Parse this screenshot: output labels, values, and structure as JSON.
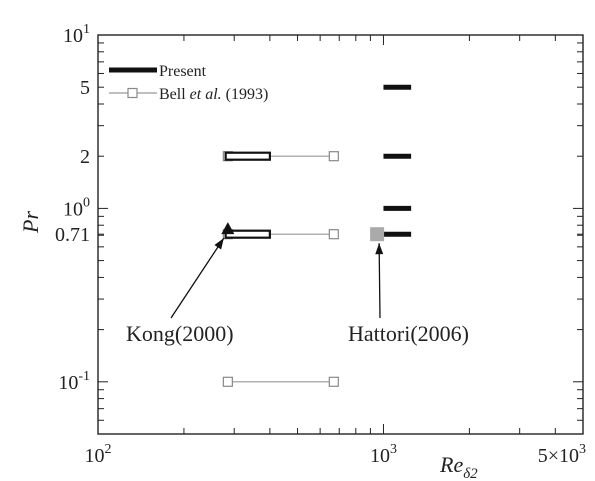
{
  "chart_data": {
    "type": "scatter",
    "xlabel": "Re",
    "xlabel_sub": "δ2",
    "ylabel": "Pr",
    "x_scale": "log",
    "y_scale": "log",
    "xlim": [
      100,
      5000
    ],
    "ylim": [
      0.05,
      10
    ],
    "grid": false,
    "legend_position": "top-left",
    "x_ticks": [
      {
        "value": 100,
        "base": "10",
        "exp": "2"
      },
      {
        "value": 1000,
        "base": "10",
        "exp": "3"
      },
      {
        "value": 5000,
        "base": "5×10",
        "exp": "3"
      }
    ],
    "y_ticks": [
      {
        "value": 10,
        "base": "10",
        "exp": "1"
      },
      {
        "value": 5,
        "text": "5"
      },
      {
        "value": 2,
        "text": "2"
      },
      {
        "value": 1,
        "base": "10",
        "exp": "0"
      },
      {
        "value": 0.71,
        "text": "0.71"
      },
      {
        "value": 0.1,
        "base": "10",
        "exp": "-1"
      }
    ],
    "legend": {
      "present": "Present",
      "bell_pre": "Bell ",
      "bell_italic": "et al.",
      "bell_post": " (1993)"
    },
    "series": [
      {
        "name": "Present",
        "segments": [
          {
            "x": [
              280,
              400
            ],
            "y": 2
          },
          {
            "x": [
              280,
              400
            ],
            "y": 0.71
          },
          {
            "x": [
              1000,
              1250
            ],
            "y": 5
          },
          {
            "x": [
              1000,
              1250
            ],
            "y": 2
          },
          {
            "x": [
              1000,
              1250
            ],
            "y": 1
          },
          {
            "x": [
              1000,
              1250
            ],
            "y": 0.71
          }
        ]
      },
      {
        "name": "Bell et al. (1993)",
        "segments": [
          {
            "x": [
              285,
              670
            ],
            "y": 2
          },
          {
            "x": [
              285,
              670
            ],
            "y": 0.71
          },
          {
            "x": [
              285,
              670
            ],
            "y": 0.1
          }
        ]
      }
    ],
    "reference_points": [
      {
        "label": "Kong(2000)",
        "marker": "triangle",
        "x": 285,
        "y": 0.75
      },
      {
        "label": "Hattori(2006)",
        "marker": "square",
        "x": 950,
        "y": 0.71
      }
    ]
  }
}
